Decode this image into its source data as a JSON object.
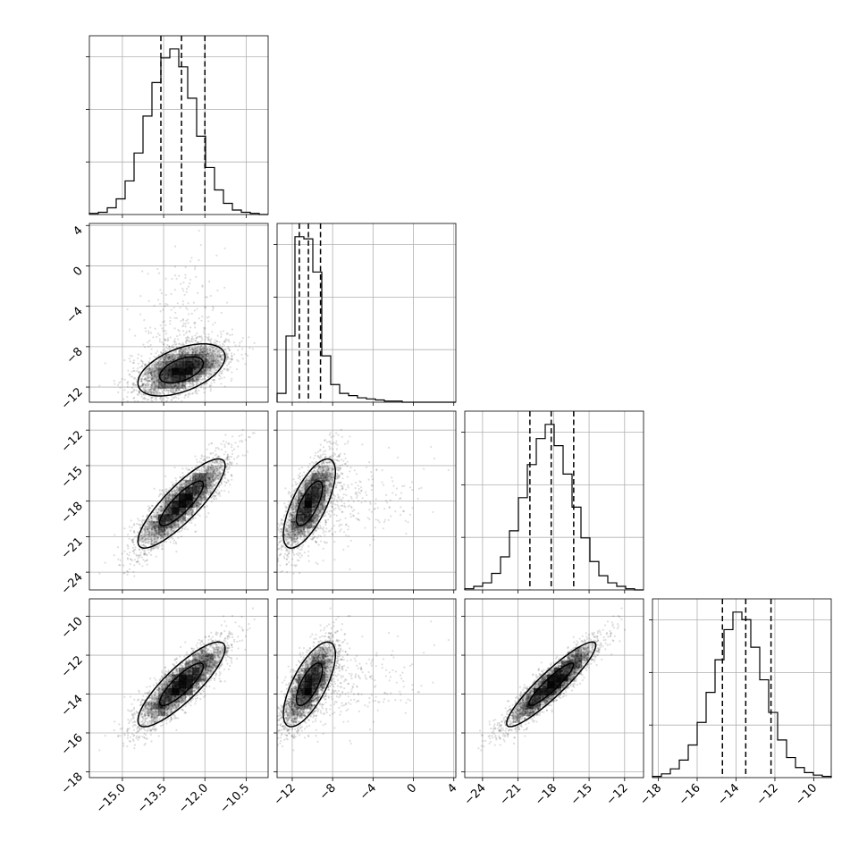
{
  "chart_data": {
    "type": "scatter",
    "title": "",
    "layout": "corner",
    "parameters": [
      {
        "index": 0,
        "range": [
          -16.2,
          -9.7
        ],
        "ticks": [
          -15.0,
          -13.5,
          -12.0,
          -10.5
        ],
        "tick_labels": [
          "−15.0",
          "−13.5",
          "−12.0",
          "−10.5"
        ],
        "mean": -12.85,
        "std": 0.8,
        "quantiles": [
          -13.6,
          -12.85,
          -12.0
        ]
      },
      {
        "index": 1,
        "range": [
          -13.5,
          4.2
        ],
        "ticks": [
          -12,
          -8,
          -4,
          0,
          4
        ],
        "tick_labels": [
          "−12",
          "−8",
          "−4",
          "0",
          "4"
        ],
        "mean": -10.3,
        "std": 1.3,
        "quantiles": [
          -11.3,
          -10.4,
          -9.2
        ]
      },
      {
        "index": 2,
        "range": [
          -25.5,
          -10.4
        ],
        "ticks": [
          -24,
          -21,
          -18,
          -15,
          -12
        ],
        "tick_labels": [
          "−24",
          "−21",
          "−18",
          "−15",
          "−12"
        ],
        "mean": -18.2,
        "std": 1.9,
        "quantiles": [
          -20.0,
          -18.2,
          -16.3
        ]
      },
      {
        "index": 3,
        "range": [
          -18.3,
          -9.1
        ],
        "ticks": [
          -18,
          -16,
          -14,
          -12,
          -10
        ],
        "tick_labels": [
          "−18",
          "−16",
          "−14",
          "−12",
          "−10"
        ],
        "mean": -13.5,
        "std": 1.1,
        "quantiles": [
          -14.7,
          -13.5,
          -12.2
        ]
      }
    ],
    "correlations": [
      [
        1.0,
        0.5,
        0.85,
        0.85
      ],
      [
        0.5,
        1.0,
        0.7,
        0.7
      ],
      [
        0.85,
        0.7,
        1.0,
        0.92
      ],
      [
        0.85,
        0.7,
        0.92,
        1.0
      ]
    ],
    "histograms": [
      {
        "param": 0,
        "bin_edges": [
          -16.2,
          -15.875,
          -15.55,
          -15.225,
          -14.9,
          -14.575,
          -14.25,
          -13.925,
          -13.6,
          -13.275,
          -12.95,
          -12.625,
          -12.3,
          -11.975,
          -11.65,
          -11.325,
          -11.0,
          -10.675,
          -10.35,
          -10.025,
          -9.7
        ],
        "counts": [
          1,
          2,
          6,
          14,
          30,
          55,
          88,
          118,
          140,
          148,
          132,
          104,
          70,
          42,
          22,
          10,
          4,
          2,
          1,
          0
        ]
      },
      {
        "param": 1,
        "bin_edges": [
          -13.5,
          -12.615,
          -11.73,
          -10.845,
          -9.96,
          -9.075,
          -8.19,
          -7.305,
          -6.42,
          -5.535,
          -4.65,
          -3.765,
          -2.88,
          -1.995,
          -1.11,
          -0.225,
          0.66,
          1.545,
          2.43,
          3.315,
          4.2
        ],
        "counts": [
          8,
          60,
          150,
          148,
          118,
          42,
          16,
          8,
          6,
          4,
          3,
          2,
          1,
          1,
          0,
          0,
          0,
          0,
          0,
          0
        ]
      },
      {
        "param": 2,
        "bin_edges": [
          -25.5,
          -24.745,
          -23.99,
          -23.235,
          -22.48,
          -21.725,
          -20.97,
          -20.215,
          -19.46,
          -18.705,
          -17.95,
          -17.195,
          -16.44,
          -15.685,
          -14.93,
          -14.175,
          -13.42,
          -12.665,
          -11.91,
          -11.155,
          -10.4
        ],
        "counts": [
          1,
          3,
          6,
          14,
          28,
          50,
          78,
          106,
          128,
          140,
          122,
          98,
          70,
          44,
          24,
          12,
          6,
          3,
          1,
          0
        ]
      },
      {
        "param": 3,
        "bin_edges": [
          -18.3,
          -17.84,
          -17.38,
          -16.92,
          -16.46,
          -16.0,
          -15.54,
          -15.08,
          -14.62,
          -14.16,
          -13.7,
          -13.24,
          -12.78,
          -12.32,
          -11.86,
          -11.4,
          -10.94,
          -10.48,
          -10.02,
          -9.56,
          -9.1
        ],
        "counts": [
          1,
          3,
          7,
          14,
          26,
          44,
          68,
          94,
          118,
          132,
          126,
          104,
          78,
          52,
          30,
          16,
          8,
          4,
          2,
          1
        ]
      }
    ],
    "contour_levels": [
      0.39,
      0.86
    ],
    "xlabel": "",
    "ylabel": "",
    "grid": true,
    "legend": "none"
  }
}
